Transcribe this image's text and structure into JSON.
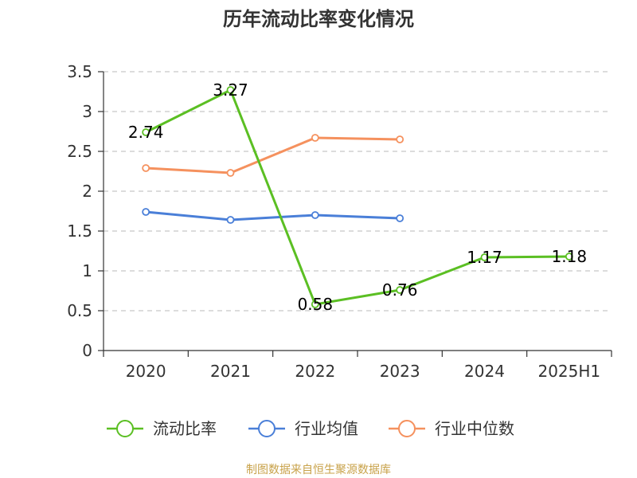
{
  "chart_data": {
    "type": "line",
    "title": "历年流动比率变化情况",
    "categories": [
      "2020",
      "2021",
      "2022",
      "2023",
      "2024",
      "2025H1"
    ],
    "ylim": [
      0,
      3.5
    ],
    "yticks": [
      "0",
      "0.5",
      "1",
      "1.5",
      "2",
      "2.5",
      "3",
      "3.5"
    ],
    "grid": true,
    "legend_position": "bottom",
    "series": [
      {
        "name": "流动比率",
        "color": "#5bbf23",
        "values": [
          2.74,
          3.27,
          0.58,
          0.76,
          1.17,
          1.18
        ],
        "labels": [
          "2.74",
          "3.27",
          "0.58",
          "0.76",
          "1.17",
          "1.18"
        ]
      },
      {
        "name": "行业均值",
        "color": "#4a7fd8",
        "values": [
          1.74,
          1.64,
          1.7,
          1.66,
          null,
          null
        ]
      },
      {
        "name": "行业中位数",
        "color": "#f5915e",
        "values": [
          2.29,
          2.23,
          2.67,
          2.65,
          null,
          null
        ]
      }
    ]
  },
  "source": "制图数据来自恒生聚源数据库"
}
